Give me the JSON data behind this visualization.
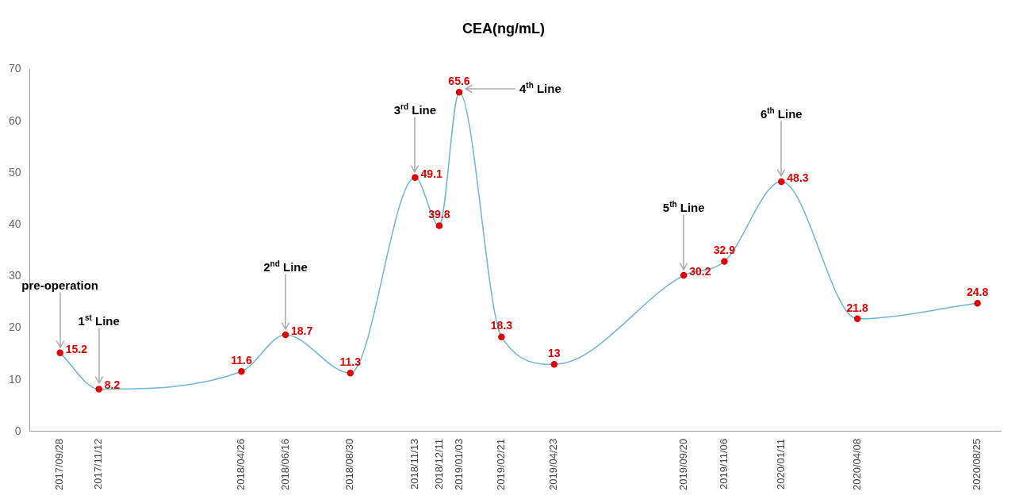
{
  "chart_data": {
    "type": "line",
    "title": "CEA(ng/mL)",
    "x": [
      "2017-09-28",
      "2017-11-12",
      "2018-04-26",
      "2018-06-16",
      "2018-08-30",
      "2018-11-13",
      "2018-12-11",
      "2019-01-03",
      "2019-02-21",
      "2019-04-23",
      "2019-09-20",
      "2019-11-06",
      "2020-01-11",
      "2020-04-08",
      "2020-08-25"
    ],
    "series": [
      {
        "color": "#6cb4d9",
        "colors": [
          "#e00000",
          "#e00000",
          "#e00000",
          "#e00000",
          "#e00000",
          "#e00000",
          "#e00000",
          "#e00000",
          "#e00000",
          "#e00000",
          "#e00000",
          "#e00000",
          "#e00000",
          "#e00000",
          "#e00000"
        ],
        "values": [
          15.2,
          8.2,
          11.6,
          18.7,
          11.3,
          49.1,
          39.8,
          65.6,
          18.3,
          13,
          30.2,
          32.9,
          48.3,
          21.8,
          24.8
        ]
      }
    ],
    "xlim": [
      "2017-08-24",
      "2020-09-21"
    ],
    "xticks": [
      {
        "value": "2017-09-28",
        "label": "2017/09/28"
      },
      {
        "value": "2017-11-12",
        "label": "2017/11/12"
      },
      {
        "value": "2018-04-26",
        "label": "2018/04/26"
      },
      {
        "value": "2018-06-16",
        "label": "2018/06/16"
      },
      {
        "value": "2018-08-30",
        "label": "2018/08/30"
      },
      {
        "value": "2018-11-13",
        "label": "2018/11/13"
      },
      {
        "value": "2018-12-11",
        "label": "2018/12/11"
      },
      {
        "value": "2019-01-03",
        "label": "2019/01/03"
      },
      {
        "value": "2019-02-21",
        "label": "2019/02/21"
      },
      {
        "value": "2019-04-23",
        "label": "2019/04/23"
      },
      {
        "value": "2019-09-20",
        "label": "2019/09/20"
      },
      {
        "value": "2019-11-06",
        "label": "2019/11/06"
      },
      {
        "value": "2020-01-11",
        "label": "2020/01/11"
      },
      {
        "value": "2020-04-08",
        "label": "2020/04/08"
      },
      {
        "value": "2020-08-25",
        "label": "2020/08/25"
      }
    ],
    "ylim": [
      0,
      70
    ],
    "yticks": [
      0,
      10,
      20,
      30,
      40,
      50,
      60,
      70
    ],
    "grid": false,
    "legend": false,
    "marker": "circle",
    "line_style": "solid",
    "data_labels": true,
    "annotations": [
      {
        "text": "pre-operation",
        "x": "2017-09-28",
        "y": 15.2
      },
      {
        "text": "1$^{st}$ Line",
        "x": "2017-11-12",
        "y": 8.2
      },
      {
        "text": "2$^{nd}$ Line",
        "x": "2018-06-16",
        "y": 18.7
      },
      {
        "text": "3$^{rd}$ Line",
        "x": "2018-11-13",
        "y": 49.1
      },
      {
        "text": "4$^{th}$ Line",
        "x": "2019-01-03",
        "y": 65.6
      },
      {
        "text": "5$^{th}$ Line",
        "x": "2019-09-20",
        "y": 30.2
      },
      {
        "text": "6$^{th}$ Line",
        "x": "2020-01-11",
        "y": 48.3
      }
    ]
  }
}
